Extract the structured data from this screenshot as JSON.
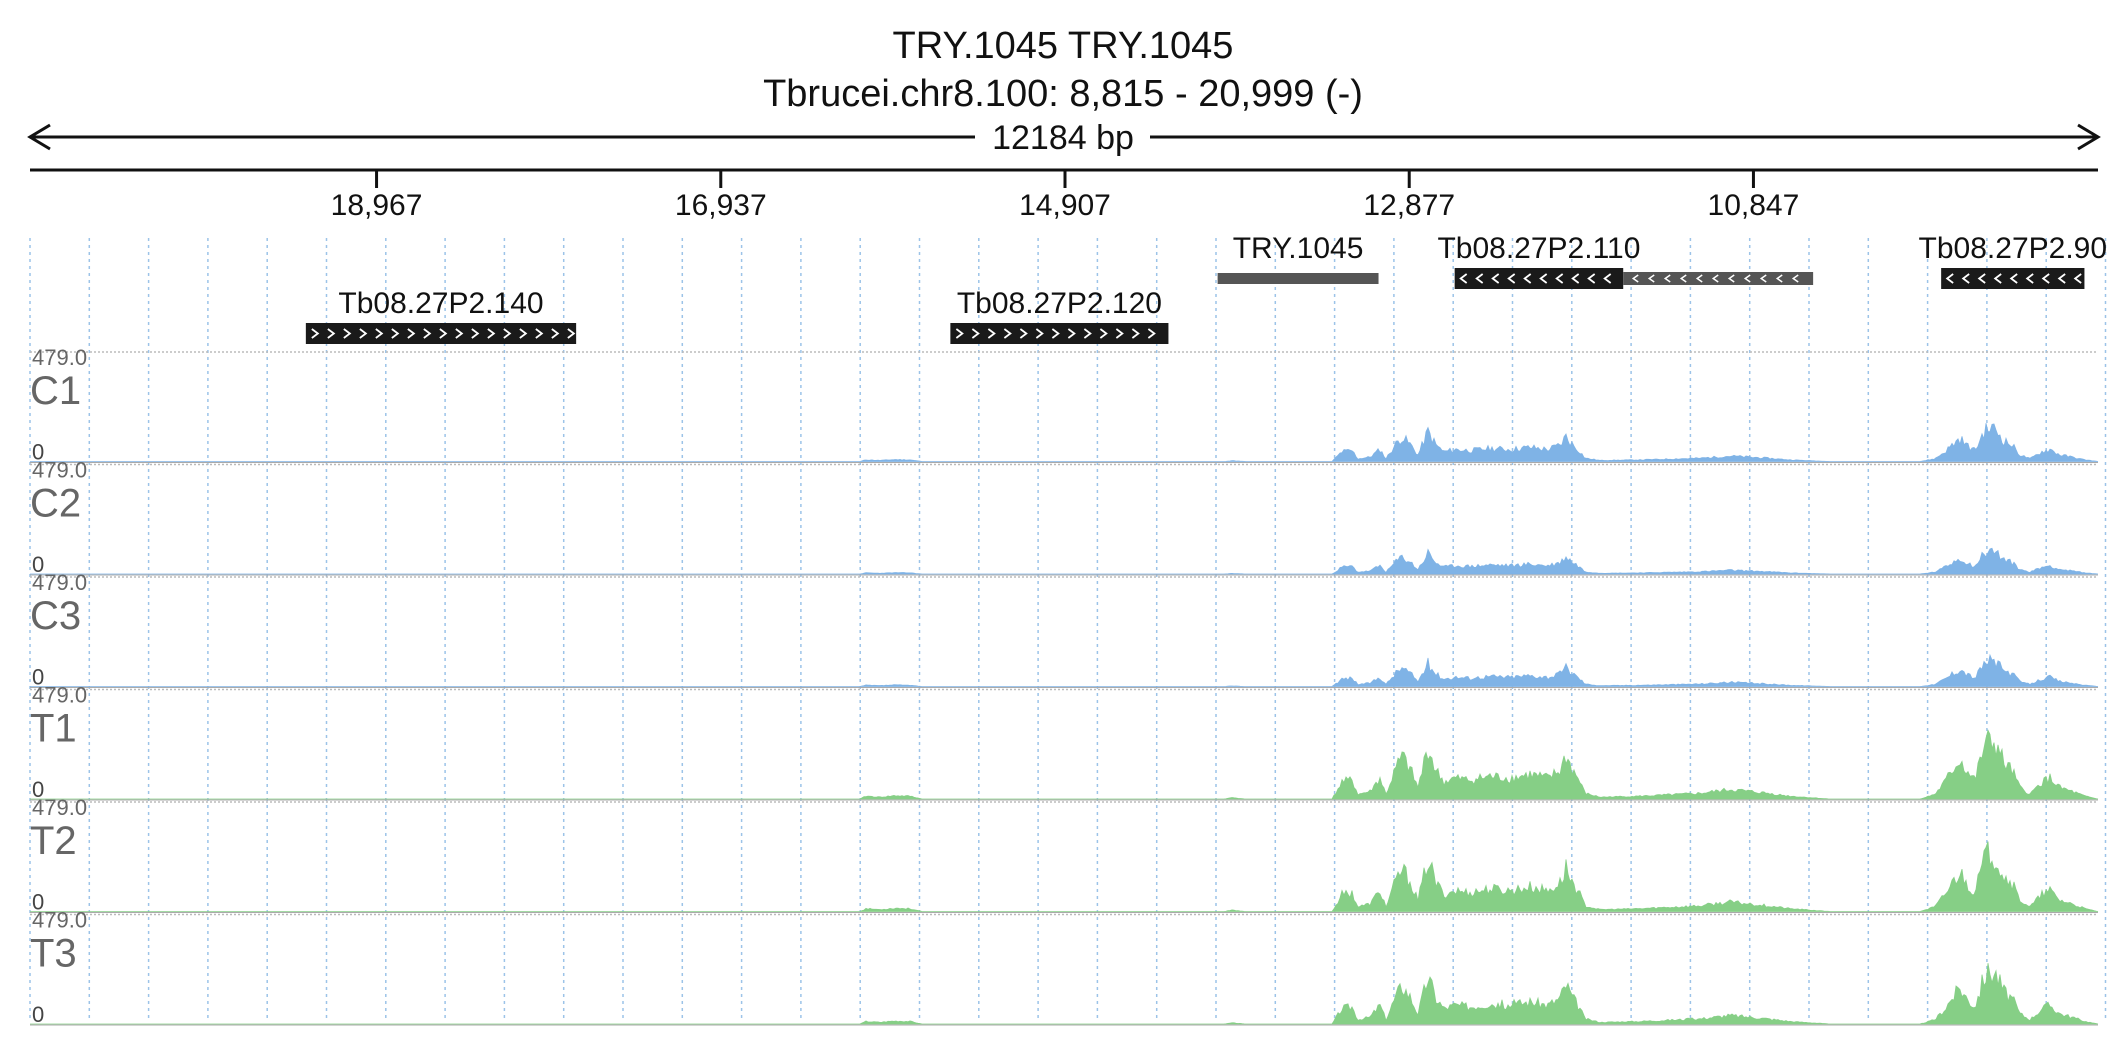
{
  "header": {
    "title": "TRY.1045  TRY.1045",
    "locus": "Tbrucei.chr8.100: 8,815 - 20,999 (-)",
    "span_label": "12184 bp"
  },
  "ruler": {
    "ticks": [
      {
        "label": "18,967",
        "pos": 18967
      },
      {
        "label": "16,937",
        "pos": 16937
      },
      {
        "label": "14,907",
        "pos": 14907
      },
      {
        "label": "12,877",
        "pos": 12877
      },
      {
        "label": "10,847",
        "pos": 10847
      }
    ]
  },
  "view": {
    "start": 8815,
    "end": 20999,
    "strand": "-"
  },
  "genes": [
    {
      "name": "Tb08.27P2.140",
      "start": 19384,
      "end": 17790,
      "row": 1,
      "direction": ">"
    },
    {
      "name": "Tb08.27P2.120",
      "start": 15583,
      "end": 14297,
      "row": 1,
      "direction": ">"
    },
    {
      "name": "TRY.1045",
      "start": 14007,
      "end": 13058,
      "row": 0,
      "direction": "",
      "style": "gray"
    },
    {
      "name": "Tb08.27P2.110",
      "start": 12609,
      "end": 11615,
      "row": 0,
      "direction": "<",
      "utr_end": 10495
    },
    {
      "name": "Tb08.27P2.90",
      "start": 9740,
      "end": 8895,
      "row": 0,
      "direction": "<"
    }
  ],
  "tracks": [
    {
      "name": "C1",
      "max_label": "479.0",
      "min_label": "0",
      "color": "#7fb3e6",
      "scale": 0.52,
      "seed": 11
    },
    {
      "name": "C2",
      "max_label": "479.0",
      "min_label": "0",
      "color": "#7fb3e6",
      "scale": 0.36,
      "seed": 23
    },
    {
      "name": "C3",
      "max_label": "479.0",
      "min_label": "0",
      "color": "#7fb3e6",
      "scale": 0.4,
      "seed": 37
    },
    {
      "name": "T1",
      "max_label": "479.0",
      "min_label": "0",
      "color": "#86cf86",
      "scale": 0.9,
      "seed": 41
    },
    {
      "name": "T2",
      "max_label": "479.0",
      "min_label": "0",
      "color": "#86cf86",
      "scale": 0.9,
      "seed": 53
    },
    {
      "name": "T3",
      "max_label": "479.0",
      "min_label": "0",
      "color": "#86cf86",
      "scale": 0.82,
      "seed": 67
    }
  ],
  "colors": {
    "gene": "#1a1a1a",
    "gray_gene": "#555555",
    "grid": "#9cc3e8",
    "track_text": "#666666"
  }
}
